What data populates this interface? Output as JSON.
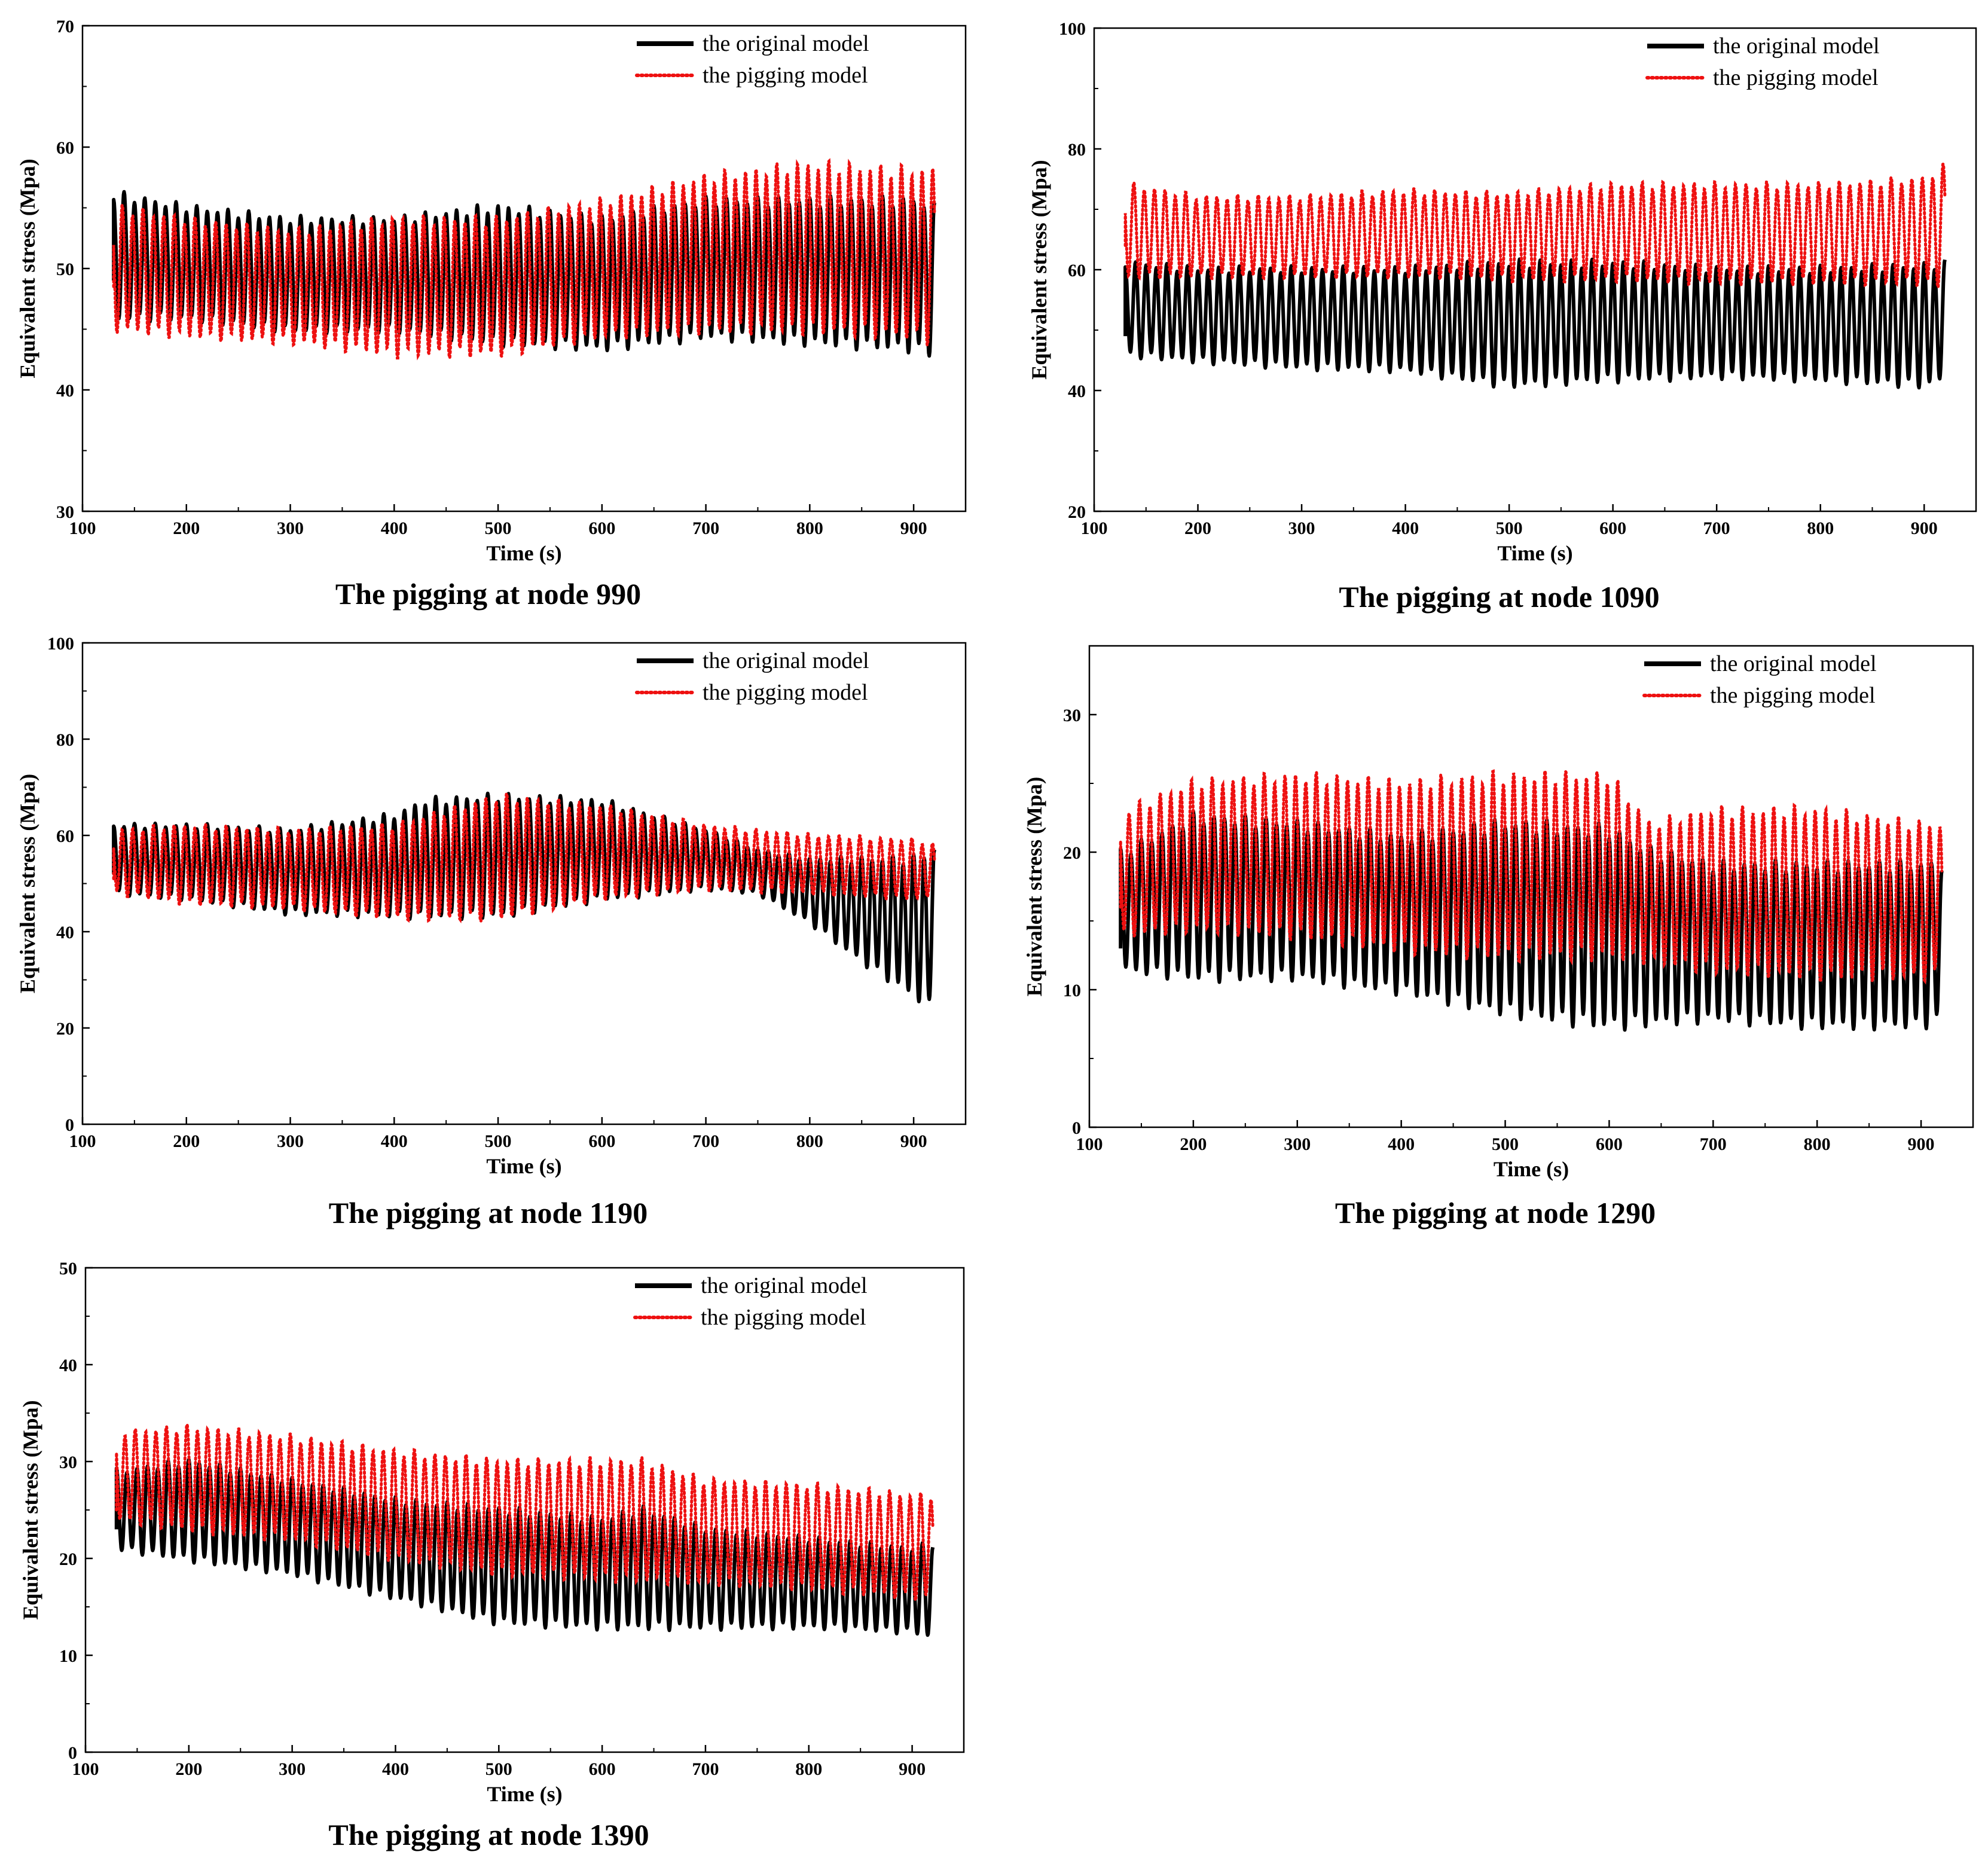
{
  "figure": {
    "colors": {
      "original": "#000000",
      "pigging": "#ee1111"
    },
    "legend": [
      "the original model",
      "the pigging model"
    ]
  },
  "chart_data": [
    {
      "type": "line",
      "caption": "The pigging at node 990",
      "xlabel": "Time (s)",
      "ylabel": "Equivalent stress (Mpa)",
      "xlim": [
        100,
        950
      ],
      "ylim": [
        30,
        70
      ],
      "xticks": [
        100,
        200,
        300,
        400,
        500,
        600,
        700,
        800,
        900
      ],
      "yticks": [
        30,
        40,
        50,
        60,
        70
      ],
      "legend_position": "top-right",
      "series": [
        {
          "name": "the original model",
          "style": "solid",
          "start": 49,
          "upper": [
            [
              135,
              56
            ],
            [
              200,
              55
            ],
            [
              300,
              54
            ],
            [
              400,
              54
            ],
            [
              500,
              55
            ],
            [
              600,
              54
            ],
            [
              700,
              55.5
            ],
            [
              800,
              55.5
            ],
            [
              900,
              55.5
            ],
            [
              920,
              55
            ]
          ],
          "lower": [
            [
              135,
              46
            ],
            [
              200,
              46
            ],
            [
              300,
              45
            ],
            [
              400,
              45
            ],
            [
              500,
              44
            ],
            [
              600,
              43.5
            ],
            [
              700,
              44.5
            ],
            [
              800,
              44
            ],
            [
              900,
              43.5
            ],
            [
              920,
              43
            ]
          ]
        },
        {
          "name": "the pigging model",
          "style": "dotted",
          "start": 48.5,
          "upper": [
            [
              135,
              55
            ],
            [
              200,
              54
            ],
            [
              300,
              53
            ],
            [
              400,
              54
            ],
            [
              500,
              54
            ],
            [
              600,
              55.5
            ],
            [
              700,
              57.5
            ],
            [
              800,
              58.5
            ],
            [
              900,
              58
            ],
            [
              920,
              58
            ]
          ],
          "lower": [
            [
              135,
              45
            ],
            [
              200,
              44.5
            ],
            [
              300,
              44
            ],
            [
              400,
              43
            ],
            [
              500,
              43
            ],
            [
              600,
              44.5
            ],
            [
              700,
              45
            ],
            [
              800,
              45
            ],
            [
              900,
              44.5
            ],
            [
              920,
              44
            ]
          ]
        }
      ]
    },
    {
      "type": "line",
      "caption": "The pigging at node 1090",
      "xlabel": "Time (s)",
      "ylabel": "Equivalent stress (Mpa)",
      "xlim": [
        100,
        950
      ],
      "ylim": [
        20,
        100
      ],
      "xticks": [
        100,
        200,
        300,
        400,
        500,
        600,
        700,
        800,
        900
      ],
      "yticks": [
        20,
        40,
        60,
        80,
        100
      ],
      "legend_position": "top-right",
      "series": [
        {
          "name": "the original model",
          "style": "solid",
          "start": 49,
          "upper": [
            [
              135,
              61
            ],
            [
              200,
              60
            ],
            [
              300,
              60
            ],
            [
              400,
              60
            ],
            [
              500,
              61
            ],
            [
              600,
              61
            ],
            [
              700,
              60
            ],
            [
              800,
              60
            ],
            [
              900,
              60.5
            ],
            [
              920,
              61
            ]
          ],
          "lower": [
            [
              135,
              46
            ],
            [
              200,
              45
            ],
            [
              300,
              44
            ],
            [
              400,
              43.5
            ],
            [
              500,
              41
            ],
            [
              600,
              42
            ],
            [
              700,
              42.5
            ],
            [
              800,
              42
            ],
            [
              900,
              41
            ],
            [
              920,
              42
            ]
          ]
        },
        {
          "name": "the pigging model",
          "style": "dotted",
          "start": 64,
          "upper": [
            [
              135,
              74
            ],
            [
              200,
              72
            ],
            [
              300,
              72
            ],
            [
              400,
              73
            ],
            [
              500,
              72.5
            ],
            [
              600,
              74
            ],
            [
              700,
              74
            ],
            [
              800,
              74
            ],
            [
              900,
              75
            ],
            [
              920,
              77
            ]
          ],
          "lower": [
            [
              135,
              59
            ],
            [
              200,
              59
            ],
            [
              300,
              59
            ],
            [
              400,
              59
            ],
            [
              500,
              58.5
            ],
            [
              600,
              58.5
            ],
            [
              700,
              58
            ],
            [
              800,
              58
            ],
            [
              900,
              58
            ],
            [
              920,
              57
            ]
          ]
        }
      ]
    },
    {
      "type": "line",
      "caption": "The pigging at node 1190",
      "xlabel": "Time (s)",
      "ylabel": "Equivalent stress (Mpa)",
      "xlim": [
        100,
        950
      ],
      "ylim": [
        0,
        100
      ],
      "xticks": [
        100,
        200,
        300,
        400,
        500,
        600,
        700,
        800,
        900
      ],
      "yticks": [
        0,
        20,
        40,
        60,
        80,
        100
      ],
      "legend_position": "top-right",
      "series": [
        {
          "name": "the original model",
          "style": "solid",
          "start": 52,
          "upper": [
            [
              135,
              62
            ],
            [
              200,
              62
            ],
            [
              300,
              61
            ],
            [
              400,
              64
            ],
            [
              430,
              67
            ],
            [
              500,
              68
            ],
            [
              600,
              67
            ],
            [
              700,
              61
            ],
            [
              750,
              57
            ],
            [
              800,
              55
            ],
            [
              900,
              55
            ],
            [
              920,
              57
            ]
          ],
          "lower": [
            [
              135,
              48
            ],
            [
              200,
              47
            ],
            [
              300,
              44
            ],
            [
              400,
              43.5
            ],
            [
              500,
              43.5
            ],
            [
              600,
              47
            ],
            [
              700,
              49
            ],
            [
              750,
              48
            ],
            [
              800,
              42
            ],
            [
              850,
              34
            ],
            [
              900,
              27
            ],
            [
              920,
              24
            ]
          ]
        },
        {
          "name": "the pigging model",
          "style": "dotted",
          "start": 51,
          "upper": [
            [
              135,
              61
            ],
            [
              200,
              62
            ],
            [
              300,
              61
            ],
            [
              400,
              62
            ],
            [
              500,
              68
            ],
            [
              600,
              66
            ],
            [
              700,
              62
            ],
            [
              800,
              60
            ],
            [
              900,
              59
            ],
            [
              920,
              58
            ]
          ],
          "lower": [
            [
              135,
              48
            ],
            [
              200,
              46
            ],
            [
              300,
              45
            ],
            [
              400,
              43
            ],
            [
              500,
              43
            ],
            [
              600,
              47
            ],
            [
              700,
              49
            ],
            [
              800,
              48
            ],
            [
              900,
              47
            ],
            [
              920,
              47
            ]
          ]
        }
      ]
    },
    {
      "type": "line",
      "caption": "The pigging at node 1290",
      "xlabel": "Time  (s)",
      "ylabel": "Equivalent stress (Mpa)",
      "xlim": [
        100,
        950
      ],
      "ylim": [
        0,
        35
      ],
      "xticks": [
        100,
        200,
        300,
        400,
        500,
        600,
        700,
        800,
        900
      ],
      "yticks": [
        0,
        10,
        20,
        30
      ],
      "legend_position": "top-right",
      "series": [
        {
          "name": "the original model",
          "style": "solid",
          "start": 13,
          "upper": [
            [
              135,
              20
            ],
            [
              200,
              22.5
            ],
            [
              300,
              22
            ],
            [
              400,
              21
            ],
            [
              500,
              22
            ],
            [
              600,
              21.5
            ],
            [
              640,
              20
            ],
            [
              700,
              19
            ],
            [
              800,
              19
            ],
            [
              900,
              19
            ],
            [
              920,
              19
            ]
          ],
          "lower": [
            [
              135,
              11.5
            ],
            [
              200,
              11
            ],
            [
              300,
              11
            ],
            [
              400,
              10
            ],
            [
              500,
              8.5
            ],
            [
              600,
              7.5
            ],
            [
              700,
              8
            ],
            [
              800,
              7.5
            ],
            [
              900,
              7.5
            ],
            [
              920,
              8
            ]
          ]
        },
        {
          "name": "the pigging model",
          "style": "dotted",
          "start": 16,
          "upper": [
            [
              135,
              23
            ],
            [
              200,
              25
            ],
            [
              300,
              25.5
            ],
            [
              400,
              25
            ],
            [
              500,
              25.5
            ],
            [
              600,
              25.5
            ],
            [
              640,
              22
            ],
            [
              700,
              23
            ],
            [
              800,
              23
            ],
            [
              900,
              22
            ],
            [
              920,
              22
            ]
          ],
          "lower": [
            [
              135,
              14
            ],
            [
              200,
              14.5
            ],
            [
              300,
              14
            ],
            [
              400,
              13
            ],
            [
              500,
              12.5
            ],
            [
              600,
              12.5
            ],
            [
              700,
              11.5
            ],
            [
              800,
              11
            ],
            [
              900,
              11
            ],
            [
              920,
              11
            ]
          ]
        }
      ]
    },
    {
      "type": "line",
      "caption": "The pigging at node 1390",
      "xlabel": "Time  (s)",
      "ylabel": "Equivalent stress (Mpa)",
      "xlim": [
        100,
        950
      ],
      "ylim": [
        0,
        50
      ],
      "xticks": [
        100,
        200,
        300,
        400,
        500,
        600,
        700,
        800,
        900
      ],
      "yticks": [
        0,
        10,
        20,
        30,
        40,
        50
      ],
      "legend_position": "top-right",
      "series": [
        {
          "name": "the original model",
          "style": "solid",
          "start": 23,
          "upper": [
            [
              135,
              29
            ],
            [
              200,
              30
            ],
            [
              300,
              28
            ],
            [
              400,
              26
            ],
            [
              500,
              25
            ],
            [
              600,
              24
            ],
            [
              640,
              25
            ],
            [
              700,
              23
            ],
            [
              800,
              22
            ],
            [
              900,
              21
            ],
            [
              920,
              21.5
            ]
          ],
          "lower": [
            [
              135,
              21
            ],
            [
              200,
              20
            ],
            [
              300,
              18.5
            ],
            [
              400,
              16
            ],
            [
              500,
              13.5
            ],
            [
              600,
              13
            ],
            [
              700,
              13
            ],
            [
              800,
              13
            ],
            [
              900,
              12.5
            ],
            [
              920,
              12
            ]
          ]
        },
        {
          "name": "the pigging model",
          "style": "dotted",
          "start": 25,
          "upper": [
            [
              135,
              33
            ],
            [
              200,
              33.5
            ],
            [
              300,
              32.5
            ],
            [
              400,
              31
            ],
            [
              500,
              30
            ],
            [
              600,
              30
            ],
            [
              640,
              30
            ],
            [
              700,
              28
            ],
            [
              800,
              27.5
            ],
            [
              900,
              26.5
            ],
            [
              920,
              26.5
            ]
          ],
          "lower": [
            [
              135,
              24
            ],
            [
              200,
              23
            ],
            [
              300,
              22
            ],
            [
              400,
              20
            ],
            [
              500,
              18.5
            ],
            [
              600,
              18
            ],
            [
              700,
              17.5
            ],
            [
              800,
              17
            ],
            [
              900,
              16
            ],
            [
              920,
              16
            ]
          ]
        }
      ]
    }
  ]
}
